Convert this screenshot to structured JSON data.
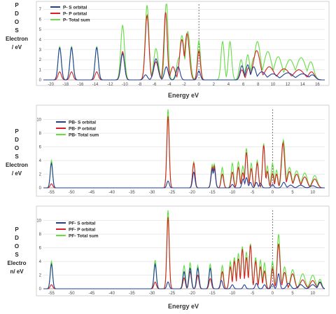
{
  "figure": {
    "panels": [
      {
        "id": "panel1",
        "ylabel_lines": [
          "P",
          "D",
          "O",
          "S",
          "Electron",
          "/ eV"
        ],
        "xlabel": "Energy eV",
        "legend": [
          "P- S orbital",
          "P- P orbital",
          "P- Total sum"
        ],
        "xlim": [
          -21,
          17
        ],
        "ylim": [
          0,
          7.5
        ],
        "xticks": [
          -20,
          -18,
          -16,
          -14,
          -12,
          -10,
          -8,
          -6,
          -4,
          -2,
          0,
          2,
          4,
          6,
          8,
          10,
          12,
          14,
          16
        ],
        "yticks": [
          0,
          1,
          2,
          3,
          4,
          5,
          6,
          7
        ],
        "fermi_x": 0
      },
      {
        "id": "panel2",
        "ylabel_lines": [
          "P",
          "D",
          "O",
          "S",
          "Electron",
          "/ eV"
        ],
        "xlabel": "",
        "legend": [
          "PB- S orbital",
          "PB- P orbital",
          "PB- Total sum"
        ],
        "xlim": [
          -57,
          13
        ],
        "ylim": [
          0,
          11.5
        ],
        "xticks": [
          -55,
          -50,
          -45,
          -40,
          -35,
          -30,
          -25,
          -20,
          -15,
          -10,
          -5,
          0,
          5,
          10
        ],
        "yticks": [
          0,
          2,
          4,
          6,
          8,
          10
        ],
        "fermi_x": 0
      },
      {
        "id": "panel3",
        "ylabel_lines": [
          "P",
          "D",
          "O",
          "S",
          "Electro",
          "n/ eV"
        ],
        "xlabel": "Energy eV",
        "legend": [
          "PF- S orbital",
          "PF- P orbital",
          "PF- Total sum"
        ],
        "xlim": [
          -57,
          13
        ],
        "ylim": [
          0,
          11.5
        ],
        "xticks": [
          -55,
          -50,
          -45,
          -40,
          -35,
          -30,
          -25,
          -20,
          -15,
          -10,
          -5,
          0,
          5,
          10
        ],
        "yticks": [
          0,
          2,
          4,
          6,
          8,
          10
        ],
        "fermi_x": 0
      }
    ],
    "colors": {
      "s": "#1f3f9a",
      "p": "#d42020",
      "total": "#66dd44",
      "grid": "#dddddd",
      "axis": "#999999",
      "fermi": "#555555"
    }
  },
  "chart_data": [
    {
      "type": "line",
      "title": "",
      "xlabel": "Energy eV",
      "ylabel": "P D O S Electron / eV",
      "xlim": [
        -21,
        17
      ],
      "ylim": [
        0,
        7.5
      ],
      "series": [
        {
          "name": "P- S orbital",
          "peaks": [
            [
              -18.8,
              3.2,
              0.22
            ],
            [
              -17.2,
              3.2,
              0.22
            ],
            [
              -13.8,
              3.2,
              0.22
            ],
            [
              -10.3,
              2.6,
              0.25
            ],
            [
              -7.2,
              0.5,
              0.25
            ],
            [
              -5.8,
              2.1,
              0.3
            ],
            [
              -4.4,
              1.3,
              0.25
            ],
            [
              -2.8,
              1.3,
              0.25
            ],
            [
              0,
              0.9,
              0.2
            ],
            [
              5.8,
              1.4,
              0.25
            ],
            [
              6.6,
              1.5,
              0.25
            ],
            [
              7.4,
              1.3,
              0.3
            ],
            [
              8.5,
              0.8,
              0.5
            ],
            [
              10,
              0.6,
              0.6
            ],
            [
              12,
              0.7,
              0.7
            ],
            [
              14,
              0.6,
              0.7
            ],
            [
              15.3,
              0.5,
              0.4
            ]
          ]
        },
        {
          "name": "P- P orbital",
          "peaks": [
            [
              -18.8,
              0.8,
              0.22
            ],
            [
              -17.2,
              0.8,
              0.22
            ],
            [
              -13.8,
              0.8,
              0.22
            ],
            [
              -10.3,
              2.8,
              0.25
            ],
            [
              -7,
              6.4,
              0.25
            ],
            [
              -5.8,
              1.8,
              0.3
            ],
            [
              -4.5,
              6.7,
              0.22
            ],
            [
              -3.5,
              1.3,
              0.3
            ],
            [
              -2.3,
              4,
              0.3
            ],
            [
              -1.6,
              4.6,
              0.3
            ],
            [
              0,
              2.9,
              0.2
            ],
            [
              5.8,
              1,
              0.25
            ],
            [
              6.7,
              1.2,
              0.25
            ],
            [
              7.8,
              2.9,
              0.45
            ],
            [
              9.5,
              1.3,
              0.6
            ],
            [
              11.5,
              1.1,
              0.7
            ],
            [
              13.5,
              1,
              0.7
            ],
            [
              15.2,
              0.8,
              0.4
            ]
          ]
        },
        {
          "name": "P- Total sum",
          "peaks": [
            [
              -18.8,
              3.3,
              0.22
            ],
            [
              -17.2,
              3.3,
              0.22
            ],
            [
              -13.8,
              3.3,
              0.22
            ],
            [
              -10.3,
              5.4,
              0.25
            ],
            [
              -7,
              7.4,
              0.25
            ],
            [
              -5.8,
              3.1,
              0.3
            ],
            [
              -4.4,
              7.9,
              0.22
            ],
            [
              -2.7,
              2.2,
              0.3
            ],
            [
              -2.3,
              4.4,
              0.3
            ],
            [
              -1.5,
              4.8,
              0.3
            ],
            [
              0,
              3.9,
              0.2
            ],
            [
              3.2,
              3.8,
              0.22
            ],
            [
              4.2,
              3.8,
              0.22
            ],
            [
              5.7,
              2,
              0.25
            ],
            [
              6.6,
              2.5,
              0.25
            ],
            [
              7.4,
              2.2,
              0.3
            ],
            [
              7.9,
              3.8,
              0.4
            ],
            [
              9.3,
              2.8,
              0.5
            ],
            [
              10.7,
              2.3,
              0.5
            ],
            [
              12.3,
              2,
              0.6
            ],
            [
              13.8,
              2.2,
              0.6
            ],
            [
              15.1,
              1.8,
              0.4
            ]
          ]
        }
      ]
    },
    {
      "type": "line",
      "title": "",
      "xlabel": "",
      "ylabel": "P D O S Electron / eV",
      "xlim": [
        -57,
        13
      ],
      "ylim": [
        0,
        11.5
      ],
      "series": [
        {
          "name": "PB- S orbital",
          "peaks": [
            [
              -55,
              3.6,
              0.3
            ],
            [
              -26,
              1,
              0.3
            ],
            [
              -19.6,
              2.3,
              0.3
            ],
            [
              -15,
              2.7,
              0.3
            ],
            [
              -14.5,
              2.8,
              0.3
            ],
            [
              -10,
              0.5,
              0.3
            ],
            [
              -7.3,
              1.3,
              0.3
            ],
            [
              -6.5,
              1.5,
              0.3
            ],
            [
              -5.5,
              0.8,
              0.3
            ],
            [
              -4,
              0.8,
              0.3
            ],
            [
              -3,
              0.7,
              0.3
            ],
            [
              0,
              0.5,
              0.3
            ],
            [
              2.8,
              0.8,
              0.4
            ],
            [
              4.5,
              0.4,
              0.5
            ],
            [
              7,
              0.4,
              0.6
            ],
            [
              10,
              0.3,
              0.6
            ]
          ]
        },
        {
          "name": "PB- P orbital",
          "peaks": [
            [
              -55,
              0.6,
              0.3
            ],
            [
              -26,
              10.5,
              0.3
            ],
            [
              -19.6,
              3.6,
              0.3
            ],
            [
              -15,
              3,
              0.3
            ],
            [
              -14.5,
              3.2,
              0.3
            ],
            [
              -12.5,
              2,
              0.3
            ],
            [
              -10,
              2.3,
              0.3
            ],
            [
              -8.5,
              3,
              0.3
            ],
            [
              -7.4,
              2.2,
              0.3
            ],
            [
              -6.5,
              5.2,
              0.3
            ],
            [
              -5.3,
              2.8,
              0.3
            ],
            [
              -3.8,
              3.6,
              0.3
            ],
            [
              -2.2,
              6.2,
              0.3
            ],
            [
              -1.3,
              2.4,
              0.3
            ],
            [
              0,
              2.1,
              0.3
            ],
            [
              1,
              2,
              0.3
            ],
            [
              2.6,
              6.6,
              0.4
            ],
            [
              4.2,
              2.4,
              0.5
            ],
            [
              6,
              2,
              0.6
            ],
            [
              8,
              1.6,
              0.6
            ],
            [
              10.5,
              1.3,
              0.6
            ]
          ]
        },
        {
          "name": "PB- Total sum",
          "peaks": [
            [
              -55,
              4,
              0.3
            ],
            [
              -26,
              11.6,
              0.3
            ],
            [
              -19.6,
              3.8,
              0.3
            ],
            [
              -15,
              3.4,
              0.3
            ],
            [
              -14.5,
              3.5,
              0.3
            ],
            [
              -12.5,
              3,
              0.3
            ],
            [
              -10,
              3.6,
              0.3
            ],
            [
              -8.5,
              3.8,
              0.3
            ],
            [
              -7.4,
              3.2,
              0.3
            ],
            [
              -6.5,
              5.8,
              0.3
            ],
            [
              -5.3,
              3.6,
              0.3
            ],
            [
              -3.8,
              4,
              0.3
            ],
            [
              -2.2,
              6.5,
              0.3
            ],
            [
              -1.3,
              3.2,
              0.3
            ],
            [
              0,
              3.6,
              0.3
            ],
            [
              1,
              2.6,
              0.3
            ],
            [
              2.7,
              7,
              0.4
            ],
            [
              4.2,
              3,
              0.5
            ],
            [
              6,
              2.5,
              0.6
            ],
            [
              8,
              2.2,
              0.6
            ],
            [
              10.5,
              1.8,
              0.6
            ]
          ]
        }
      ]
    },
    {
      "type": "line",
      "title": "",
      "xlabel": "Energy eV",
      "ylabel": "P D O S Electron/ eV",
      "xlim": [
        -57,
        13
      ],
      "ylim": [
        0,
        11.5
      ],
      "series": [
        {
          "name": "PF- S orbital",
          "peaks": [
            [
              -55,
              3.6,
              0.3
            ],
            [
              -29.2,
              3.6,
              0.3
            ],
            [
              -26,
              1,
              0.3
            ],
            [
              -22,
              2.5,
              0.3
            ],
            [
              -20.5,
              3,
              0.3
            ],
            [
              -18.6,
              3,
              0.3
            ],
            [
              -15.5,
              3,
              0.3
            ],
            [
              -12.7,
              1.2,
              0.3
            ],
            [
              -10,
              0.6,
              0.3
            ],
            [
              -7,
              0.6,
              0.3
            ],
            [
              -4,
              0.8,
              0.3
            ],
            [
              -2,
              0.6,
              0.3
            ],
            [
              0,
              0.7,
              0.3
            ],
            [
              1.5,
              2.2,
              0.3
            ],
            [
              4,
              0.8,
              0.5
            ],
            [
              7,
              0.6,
              0.6
            ],
            [
              10,
              0.6,
              0.6
            ],
            [
              11.8,
              1,
              0.4
            ]
          ]
        },
        {
          "name": "PF- P orbital",
          "peaks": [
            [
              -55,
              0.6,
              0.3
            ],
            [
              -29.2,
              1,
              0.3
            ],
            [
              -26,
              10.5,
              0.3
            ],
            [
              -22,
              1.6,
              0.3
            ],
            [
              -20.5,
              2.5,
              0.3
            ],
            [
              -18.6,
              2,
              0.3
            ],
            [
              -15.5,
              1.5,
              0.3
            ],
            [
              -12.5,
              2.5,
              0.3
            ],
            [
              -10.5,
              3.2,
              0.3
            ],
            [
              -9.5,
              4,
              0.3
            ],
            [
              -8.5,
              4.4,
              0.3
            ],
            [
              -7.5,
              5.8,
              0.3
            ],
            [
              -6.5,
              4.6,
              0.3
            ],
            [
              -5.5,
              6.4,
              0.3
            ],
            [
              -4.2,
              4,
              0.3
            ],
            [
              -3,
              3.2,
              0.3
            ],
            [
              -2,
              2.6,
              0.3
            ],
            [
              0,
              3,
              0.3
            ],
            [
              1.5,
              6.6,
              0.35
            ],
            [
              3,
              2.4,
              0.4
            ],
            [
              5,
              2.2,
              0.5
            ],
            [
              7.5,
              1.3,
              0.6
            ],
            [
              10,
              1.2,
              0.6
            ],
            [
              11.8,
              0.9,
              0.4
            ]
          ]
        },
        {
          "name": "PF- Total sum",
          "peaks": [
            [
              -55,
              4,
              0.3
            ],
            [
              -29.2,
              4.2,
              0.3
            ],
            [
              -26,
              11.6,
              0.3
            ],
            [
              -22,
              3.4,
              0.3
            ],
            [
              -20.5,
              3.8,
              0.3
            ],
            [
              -18.6,
              3.4,
              0.3
            ],
            [
              -15.5,
              3.6,
              0.3
            ],
            [
              -12.5,
              3.4,
              0.3
            ],
            [
              -10.5,
              4,
              0.3
            ],
            [
              -9.5,
              4.6,
              0.3
            ],
            [
              -8.5,
              5.2,
              0.3
            ],
            [
              -7.5,
              6.2,
              0.3
            ],
            [
              -6.5,
              5.4,
              0.3
            ],
            [
              -5.5,
              6.6,
              0.3
            ],
            [
              -4.2,
              4.6,
              0.3
            ],
            [
              -3,
              4.2,
              0.3
            ],
            [
              -2,
              3.8,
              0.3
            ],
            [
              0,
              4,
              0.3
            ],
            [
              1.5,
              8,
              0.35
            ],
            [
              3,
              3.2,
              0.4
            ],
            [
              5,
              2.8,
              0.5
            ],
            [
              7.5,
              2.2,
              0.6
            ],
            [
              10,
              2,
              0.6
            ],
            [
              11.8,
              1.4,
              0.4
            ]
          ]
        }
      ]
    }
  ]
}
